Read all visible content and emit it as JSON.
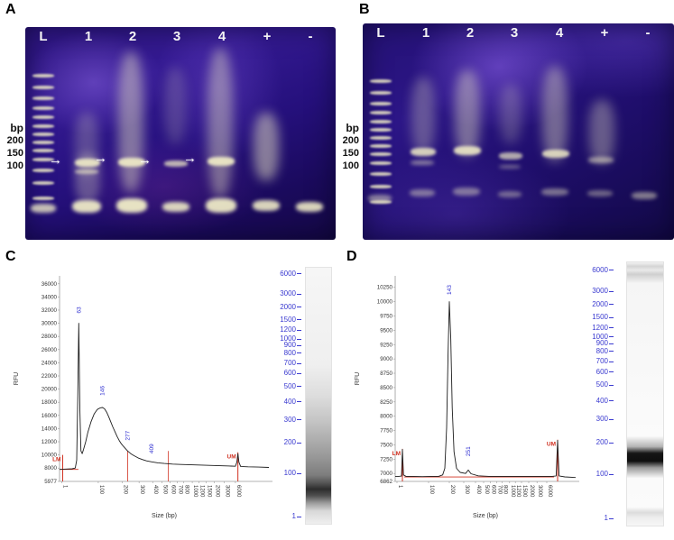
{
  "panel_a": {
    "label": "A",
    "lane_labels": [
      "L",
      "1",
      "2",
      "3",
      "4",
      "+",
      "-"
    ],
    "bp_unit": "bp",
    "size_markers": [
      "200",
      "150",
      "100"
    ]
  },
  "panel_b": {
    "label": "B",
    "lane_labels": [
      "L",
      "1",
      "2",
      "3",
      "4",
      "+",
      "-"
    ],
    "bp_unit": "bp",
    "size_markers": [
      "200",
      "150",
      "100"
    ]
  },
  "panel_c": {
    "label": "C"
  },
  "panel_d": {
    "label": "D"
  },
  "chart_data": [
    {
      "panel": "C",
      "type": "line",
      "title": "",
      "xlabel": "Size (bp)",
      "ylabel": "RFU",
      "ylim": [
        5977,
        37200
      ],
      "x_axis_scale": "log-like",
      "y_ticks": [
        5977,
        8000,
        10000,
        12000,
        14000,
        16000,
        18000,
        20000,
        22000,
        24000,
        26000,
        28000,
        30000,
        32000,
        34000,
        36000
      ],
      "x_ticks": [
        {
          "label": "1",
          "pos": 0.01
        },
        {
          "label": "100",
          "pos": 0.185
        },
        {
          "label": "200",
          "pos": 0.3
        },
        {
          "label": "300",
          "pos": 0.38
        },
        {
          "label": "400",
          "pos": 0.445
        },
        {
          "label": "500",
          "pos": 0.49
        },
        {
          "label": "600",
          "pos": 0.528
        },
        {
          "label": "700",
          "pos": 0.562
        },
        {
          "label": "800",
          "pos": 0.592
        },
        {
          "label": "1000",
          "pos": 0.634
        },
        {
          "label": "1200",
          "pos": 0.666
        },
        {
          "label": "1500",
          "pos": 0.7
        },
        {
          "label": "2000",
          "pos": 0.74
        },
        {
          "label": "3000",
          "pos": 0.786
        },
        {
          "label": "6000",
          "pos": 0.84
        }
      ],
      "peaks": [
        {
          "label": "63",
          "pos": 0.092,
          "rfu": 30000,
          "label_rfu": 31500
        },
        {
          "label": "146",
          "pos": 0.205,
          "rfu": 17200,
          "label_rfu": 19000
        },
        {
          "label": "277",
          "pos": 0.325,
          "rfu": 10600,
          "label_rfu": 12200
        },
        {
          "label": "409",
          "pos": 0.44,
          "rfu": 8950,
          "label_rfu": 10200
        }
      ],
      "markers": [
        {
          "label": "LM",
          "pos": 0.015,
          "top_rfu": 10000
        },
        {
          "label": "UM",
          "pos": 0.852,
          "top_rfu": 10400
        }
      ],
      "region_lines": [
        {
          "pos": 0.325,
          "top_rfu": 10600
        },
        {
          "pos": 0.52,
          "top_rfu": 10600
        }
      ],
      "baseline_segment": {
        "from": 0.0,
        "to": 0.09,
        "rfu": 7800
      },
      "trace": [
        [
          0,
          7800
        ],
        [
          0.03,
          7850
        ],
        [
          0.06,
          7900
        ],
        [
          0.075,
          8000
        ],
        [
          0.082,
          9200
        ],
        [
          0.087,
          19000
        ],
        [
          0.092,
          30000
        ],
        [
          0.097,
          17000
        ],
        [
          0.102,
          10600
        ],
        [
          0.108,
          10200
        ],
        [
          0.115,
          10900
        ],
        [
          0.125,
          12000
        ],
        [
          0.135,
          13400
        ],
        [
          0.15,
          15000
        ],
        [
          0.165,
          16200
        ],
        [
          0.18,
          16900
        ],
        [
          0.195,
          17150
        ],
        [
          0.205,
          17200
        ],
        [
          0.215,
          17000
        ],
        [
          0.225,
          16500
        ],
        [
          0.235,
          15800
        ],
        [
          0.245,
          15000
        ],
        [
          0.255,
          14200
        ],
        [
          0.265,
          13500
        ],
        [
          0.275,
          12800
        ],
        [
          0.285,
          12200
        ],
        [
          0.295,
          11700
        ],
        [
          0.305,
          11300
        ],
        [
          0.315,
          10950
        ],
        [
          0.325,
          10600
        ],
        [
          0.34,
          10200
        ],
        [
          0.355,
          9900
        ],
        [
          0.375,
          9550
        ],
        [
          0.395,
          9300
        ],
        [
          0.415,
          9100
        ],
        [
          0.44,
          8950
        ],
        [
          0.47,
          8800
        ],
        [
          0.5,
          8700
        ],
        [
          0.54,
          8600
        ],
        [
          0.58,
          8550
        ],
        [
          0.63,
          8500
        ],
        [
          0.68,
          8450
        ],
        [
          0.73,
          8400
        ],
        [
          0.78,
          8350
        ],
        [
          0.82,
          8300
        ],
        [
          0.84,
          8280
        ],
        [
          0.847,
          8900
        ],
        [
          0.852,
          10200
        ],
        [
          0.857,
          8900
        ],
        [
          0.865,
          8250
        ],
        [
          0.9,
          8200
        ],
        [
          0.95,
          8150
        ],
        [
          1,
          8100
        ]
      ],
      "ladder": {
        "labels": [
          "6000",
          "3000",
          "2000",
          "1500",
          "1200",
          "1000",
          "900",
          "800",
          "700",
          "600",
          "500",
          "400",
          "300",
          "200",
          "100",
          "1"
        ],
        "positions": [
          0.02,
          0.1,
          0.15,
          0.2,
          0.24,
          0.275,
          0.3,
          0.33,
          0.37,
          0.41,
          0.46,
          0.52,
          0.59,
          0.68,
          0.8,
          0.97
        ]
      }
    },
    {
      "panel": "D",
      "type": "line",
      "title": "",
      "xlabel": "Size (bp)",
      "ylabel": "RFU",
      "ylim": [
        6862,
        10450
      ],
      "x_axis_scale": "log-like",
      "y_ticks": [
        6862,
        7000,
        7250,
        7500,
        7750,
        8000,
        8250,
        8500,
        8750,
        9000,
        9250,
        9500,
        9750,
        10000,
        10250
      ],
      "x_ticks": [
        {
          "label": "1",
          "pos": 0.01
        },
        {
          "label": "100",
          "pos": 0.185
        },
        {
          "label": "200",
          "pos": 0.3
        },
        {
          "label": "300",
          "pos": 0.38
        },
        {
          "label": "400",
          "pos": 0.445
        },
        {
          "label": "500",
          "pos": 0.49
        },
        {
          "label": "600",
          "pos": 0.528
        },
        {
          "label": "700",
          "pos": 0.562
        },
        {
          "label": "800",
          "pos": 0.592
        },
        {
          "label": "1000",
          "pos": 0.634
        },
        {
          "label": "1200",
          "pos": 0.666
        },
        {
          "label": "1500",
          "pos": 0.7
        },
        {
          "label": "2000",
          "pos": 0.74
        },
        {
          "label": "3000",
          "pos": 0.786
        },
        {
          "label": "6000",
          "pos": 0.84
        }
      ],
      "peaks": [
        {
          "label": "143",
          "pos": 0.3,
          "rfu": 10000,
          "label_rfu": 10120
        },
        {
          "label": "251",
          "pos": 0.405,
          "rfu": 7060,
          "label_rfu": 7300
        }
      ],
      "markers": [
        {
          "label": "LM",
          "pos": 0.04,
          "top_rfu": 7430
        },
        {
          "label": "UM",
          "pos": 0.9,
          "top_rfu": 7590
        }
      ],
      "region_lines": [],
      "baseline_segment": {
        "from": 0.05,
        "to": 0.88,
        "rfu": 6940
      },
      "trace": [
        [
          0,
          6950
        ],
        [
          0.02,
          6950
        ],
        [
          0.035,
          6955
        ],
        [
          0.04,
          7420
        ],
        [
          0.046,
          6975
        ],
        [
          0.06,
          6950
        ],
        [
          0.1,
          6950
        ],
        [
          0.15,
          6945
        ],
        [
          0.2,
          6950
        ],
        [
          0.24,
          6950
        ],
        [
          0.263,
          6975
        ],
        [
          0.275,
          7090
        ],
        [
          0.285,
          7800
        ],
        [
          0.293,
          9100
        ],
        [
          0.3,
          10000
        ],
        [
          0.308,
          9350
        ],
        [
          0.316,
          8150
        ],
        [
          0.326,
          7380
        ],
        [
          0.34,
          7090
        ],
        [
          0.36,
          7020
        ],
        [
          0.39,
          7000
        ],
        [
          0.405,
          7060
        ],
        [
          0.42,
          6995
        ],
        [
          0.46,
          6960
        ],
        [
          0.52,
          6950
        ],
        [
          0.6,
          6950
        ],
        [
          0.7,
          6950
        ],
        [
          0.8,
          6950
        ],
        [
          0.87,
          6950
        ],
        [
          0.892,
          6958
        ],
        [
          0.9,
          7580
        ],
        [
          0.908,
          6958
        ],
        [
          0.94,
          6940
        ],
        [
          1,
          6930
        ]
      ],
      "ladder": {
        "labels": [
          "6000",
          "3000",
          "2000",
          "1500",
          "1200",
          "1000",
          "900",
          "800",
          "700",
          "600",
          "500",
          "400",
          "300",
          "200",
          "100",
          "1"
        ],
        "positions": [
          0.02,
          0.1,
          0.15,
          0.2,
          0.24,
          0.275,
          0.3,
          0.33,
          0.37,
          0.41,
          0.46,
          0.52,
          0.59,
          0.68,
          0.8,
          0.97
        ]
      }
    }
  ]
}
